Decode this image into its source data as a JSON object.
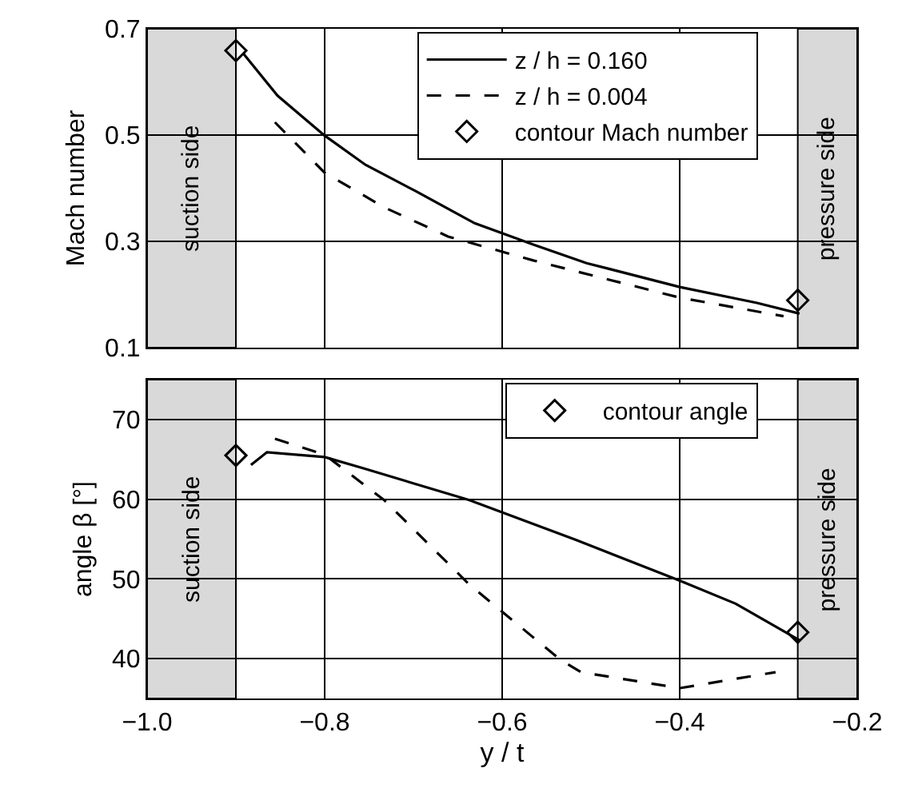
{
  "chart_data": [
    {
      "type": "line",
      "ylabel": "Mach number",
      "xlim": [
        -1.0,
        -0.2
      ],
      "xticks": [
        -1.0,
        -0.8,
        -0.6,
        -0.4,
        -0.2
      ],
      "ylim": [
        0.1,
        0.7
      ],
      "yticks": [
        0.1,
        0.3,
        0.5,
        0.7
      ],
      "grid": true,
      "legend": "top right",
      "tick_labels": "y",
      "series": [
        {
          "name": "z / h = 0.160",
          "color": "#000000",
          "line_style": "solid",
          "x": [
            -0.892,
            -0.853,
            -0.8,
            -0.754,
            -0.697,
            -0.631,
            -0.565,
            -0.505,
            -0.4,
            -0.313,
            -0.265
          ],
          "values": [
            0.654,
            0.574,
            0.499,
            0.444,
            0.394,
            0.334,
            0.294,
            0.259,
            0.214,
            0.184,
            0.164
          ]
        },
        {
          "name": "z / h = 0.004",
          "color": "#000000",
          "line_style": "dashed",
          "x": [
            -0.856,
            -0.8,
            -0.733,
            -0.661,
            -0.565,
            -0.4,
            -0.283
          ],
          "values": [
            0.524,
            0.429,
            0.364,
            0.309,
            0.264,
            0.194,
            0.159
          ]
        },
        {
          "name": "contour Mach number",
          "type": "scatter",
          "marker": "diamond",
          "color": "#000000",
          "x": [
            -0.9,
            -0.267
          ],
          "values": [
            0.659,
            0.189
          ]
        }
      ],
      "bands": [
        {
          "axis": "x",
          "from": -1.0,
          "to": -0.9,
          "label": "suction side",
          "color": "#d9d9d9"
        },
        {
          "axis": "x",
          "from": -0.267,
          "to": -0.2,
          "label": "pressure side",
          "color": "#d9d9d9"
        }
      ]
    },
    {
      "type": "line",
      "ylabel": "angle β [°]",
      "xlabel": "y / t",
      "xlim": [
        -1.0,
        -0.2
      ],
      "xticks": [
        {
          "value": -1.0,
          "label": "−1.0"
        },
        {
          "value": -0.8,
          "label": "−0.8"
        },
        {
          "value": -0.6,
          "label": "−0.6"
        },
        {
          "value": -0.4,
          "label": "−0.4"
        },
        {
          "value": -0.2,
          "label": "−0.2"
        }
      ],
      "ylim": [
        35,
        75
      ],
      "yticks": [
        40,
        50,
        60,
        70
      ],
      "grid": true,
      "legend": "top right",
      "series": [
        {
          "color": "#000000",
          "line_style": "solid",
          "x": [
            -0.883,
            -0.865,
            -0.8,
            -0.757,
            -0.637,
            -0.517,
            -0.4,
            -0.337,
            -0.265
          ],
          "values": [
            64.3,
            65.9,
            65.3,
            63.9,
            59.9,
            54.9,
            49.8,
            46.9,
            42.3
          ]
        },
        {
          "color": "#000000",
          "line_style": "dashed",
          "x": [
            -0.856,
            -0.8,
            -0.733,
            -0.637,
            -0.535,
            -0.511,
            -0.4,
            -0.292
          ],
          "values": [
            67.6,
            65.6,
            59.9,
            49.3,
            39.9,
            38.3,
            36.3,
            38.3
          ]
        },
        {
          "name": "contour angle",
          "type": "scatter",
          "marker": "diamond",
          "color": "#000000",
          "x": [
            -0.9,
            -0.267
          ],
          "values": [
            65.5,
            43.3
          ]
        }
      ],
      "bands": [
        {
          "axis": "x",
          "from": -1.0,
          "to": -0.9,
          "label": "suction side",
          "color": "#d9d9d9"
        },
        {
          "axis": "x",
          "from": -0.267,
          "to": -0.2,
          "label": "pressure side",
          "color": "#d9d9d9"
        }
      ]
    }
  ]
}
